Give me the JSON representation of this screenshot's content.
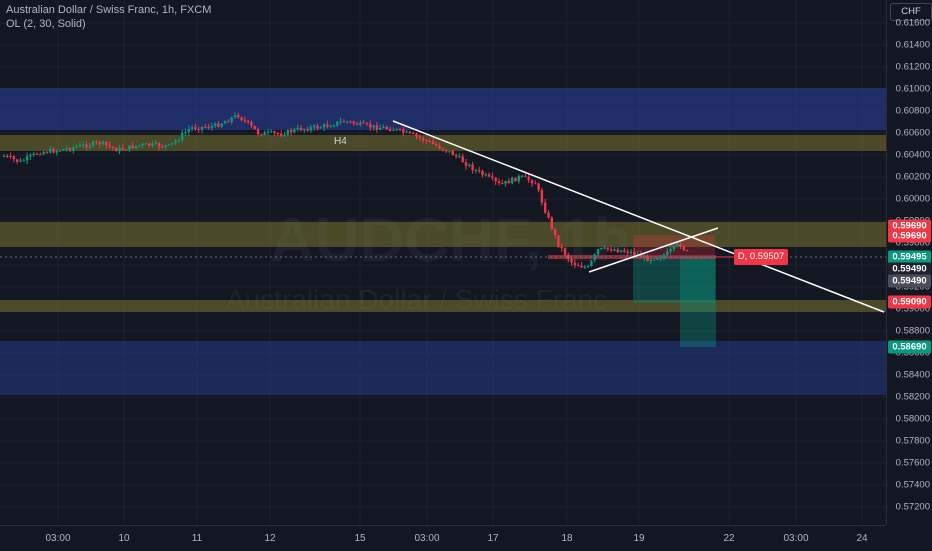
{
  "legend": {
    "title": "Australian Dollar / Swiss Franc, 1h, FXCM",
    "indicator": "OL (2, 30, Solid)"
  },
  "watermark": {
    "symbol": "AUDCHF, 1h",
    "name": "Australian Dollar / Swiss Franc"
  },
  "currency_label": "CHF",
  "price_axis_ticks": [
    "0.61600",
    "0.61400",
    "0.61200",
    "0.61000",
    "0.60800",
    "0.60600",
    "0.60400",
    "0.60200",
    "0.60000",
    "0.59800",
    "0.59600",
    "0.59400",
    "0.59200",
    "0.59000",
    "0.58800",
    "0.58600",
    "0.58400",
    "0.58200",
    "0.58000",
    "0.57800",
    "0.57600",
    "0.57400",
    "0.57200"
  ],
  "time_axis_labels": [
    "03:00",
    "10",
    "11",
    "12",
    "15",
    "03:00",
    "17",
    "18",
    "19",
    "22",
    "03:00",
    "24"
  ],
  "price_tags": [
    {
      "text": "0.59690",
      "color": "#f23645"
    },
    {
      "text": "0.59690",
      "color": "#f23645"
    },
    {
      "text": "0.59495",
      "color": "#089981"
    },
    {
      "text": "0.59490",
      "color": "#1e222d"
    },
    {
      "text": "0.59490",
      "color": "#4a4e58"
    },
    {
      "text": "0.59090",
      "color": "#f23645"
    },
    {
      "text": "0.58690",
      "color": "#089981"
    }
  ],
  "annotations": {
    "h4_label": "H4",
    "position_label": "D, 0.59507"
  },
  "colors": {
    "background": "#131722",
    "up_candle": "#089981",
    "down_candle": "#f23645",
    "supply_zone": "#1c2f6b",
    "demand_zone": "#4d4a22",
    "trendline": "#ffffff"
  }
}
